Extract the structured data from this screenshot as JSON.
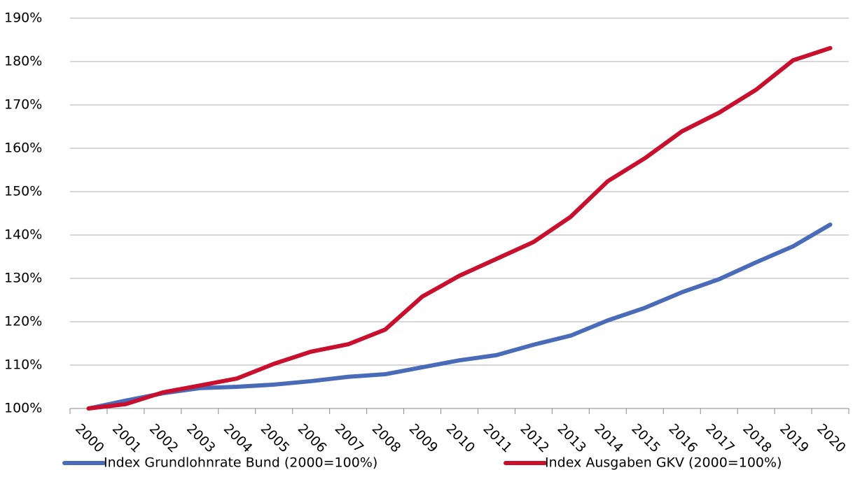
{
  "chart_data": {
    "type": "line",
    "categories": [
      "2000",
      "2001",
      "2002",
      "2003",
      "2004",
      "2005",
      "2006",
      "2007",
      "2008",
      "2009",
      "2010",
      "2011",
      "2012",
      "2013",
      "2014",
      "2015",
      "2016",
      "2017",
      "2018",
      "2019",
      "2020"
    ],
    "series": [
      {
        "name": "Index Grundlohnrate Bund (2000=100%)",
        "color": "#4a6cb8",
        "values": [
          100,
          101.8,
          103.5,
          104.7,
          105,
          105.5,
          106.3,
          107.3,
          107.9,
          109.5,
          111.1,
          112.3,
          114.7,
          116.8,
          120.3,
          123.2,
          126.8,
          129.8,
          133.7,
          137.4,
          142.4
        ]
      },
      {
        "name": "Index Ausgaben GKV (2000=100%)",
        "color": "#c8102e",
        "values": [
          100,
          101,
          103.7,
          105.3,
          106.9,
          110.3,
          113.1,
          114.8,
          118.2,
          125.8,
          130.6,
          134.5,
          138.4,
          144.2,
          152.4,
          157.7,
          163.9,
          168.2,
          173.5,
          180.3,
          183.1
        ]
      }
    ],
    "ylim": [
      100,
      190
    ],
    "yticks": [
      {
        "value": 100,
        "label": "100%"
      },
      {
        "value": 110,
        "label": "110%"
      },
      {
        "value": 120,
        "label": "120%"
      },
      {
        "value": 130,
        "label": "130%"
      },
      {
        "value": 140,
        "label": "140%"
      },
      {
        "value": 150,
        "label": "150%"
      },
      {
        "value": 160,
        "label": "160%"
      },
      {
        "value": 170,
        "label": "170%"
      },
      {
        "value": 180,
        "label": "180%"
      },
      {
        "value": 190,
        "label": "190%"
      }
    ],
    "grid": true,
    "legend": "bottom"
  }
}
